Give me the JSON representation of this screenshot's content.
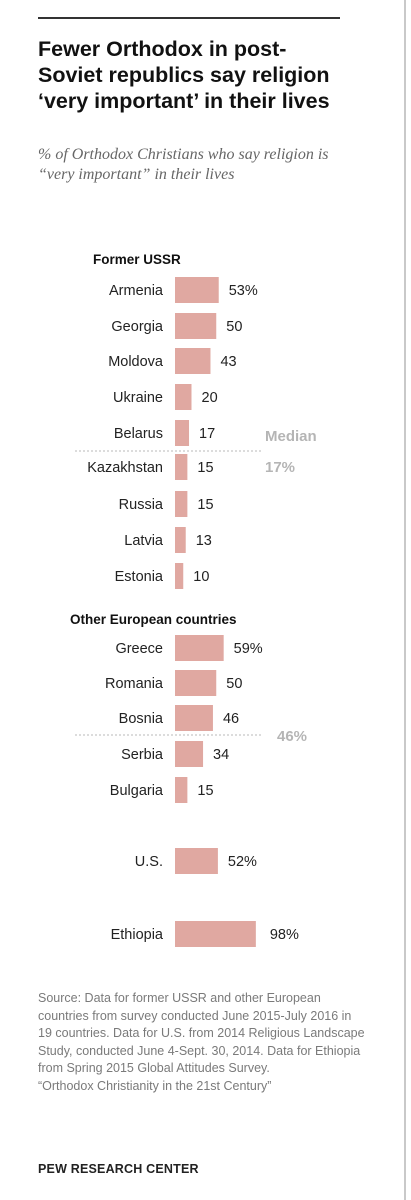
{
  "title": "Fewer Orthodox in post-Soviet republics say religion ‘very important’ in their lives",
  "subtitle": "% of Orthodox Christians who say religion is “very important” in their lives",
  "source": "Source: Data for former USSR and other European countries from survey conducted June 2015-July 2016 in 19 countries. Data for U.S. from 2014 Religious Landscape Study, conducted June 4-Sept. 30, 2014. Data for Ethiopia from Spring 2015 Global Attitudes Survey.\n“Orthodox Christianity in the 21st Century”",
  "footer": "PEW RESEARCH CENTER",
  "colors": {
    "bar": "#e0a8a1",
    "median_text": "#b5b5b5",
    "divider": "#c8c8c8"
  },
  "chart_data": {
    "type": "bar",
    "orientation": "horizontal",
    "unit": "%",
    "groups": [
      {
        "name": "Former USSR",
        "categories": [
          "Armenia",
          "Georgia",
          "Moldova",
          "Ukraine",
          "Belarus",
          "Kazakhstan",
          "Russia",
          "Latvia",
          "Estonia"
        ],
        "values": [
          53,
          50,
          43,
          20,
          17,
          15,
          15,
          13,
          10
        ],
        "value_labels": [
          "53%",
          "50",
          "43",
          "20",
          "17",
          "15",
          "15",
          "13",
          "10"
        ],
        "median_label": "Median",
        "median_value": "17%"
      },
      {
        "name": "Other European countries",
        "categories": [
          "Greece",
          "Romania",
          "Bosnia",
          "Serbia",
          "Bulgaria"
        ],
        "values": [
          59,
          50,
          46,
          34,
          15
        ],
        "value_labels": [
          "59%",
          "50",
          "46",
          "34",
          "15"
        ],
        "median_value": "46%"
      },
      {
        "name": "",
        "categories": [
          "U.S."
        ],
        "values": [
          52
        ],
        "value_labels": [
          "52%"
        ]
      },
      {
        "name": "",
        "categories": [
          "Ethiopia"
        ],
        "values": [
          98
        ],
        "value_labels": [
          "98%"
        ]
      }
    ]
  }
}
